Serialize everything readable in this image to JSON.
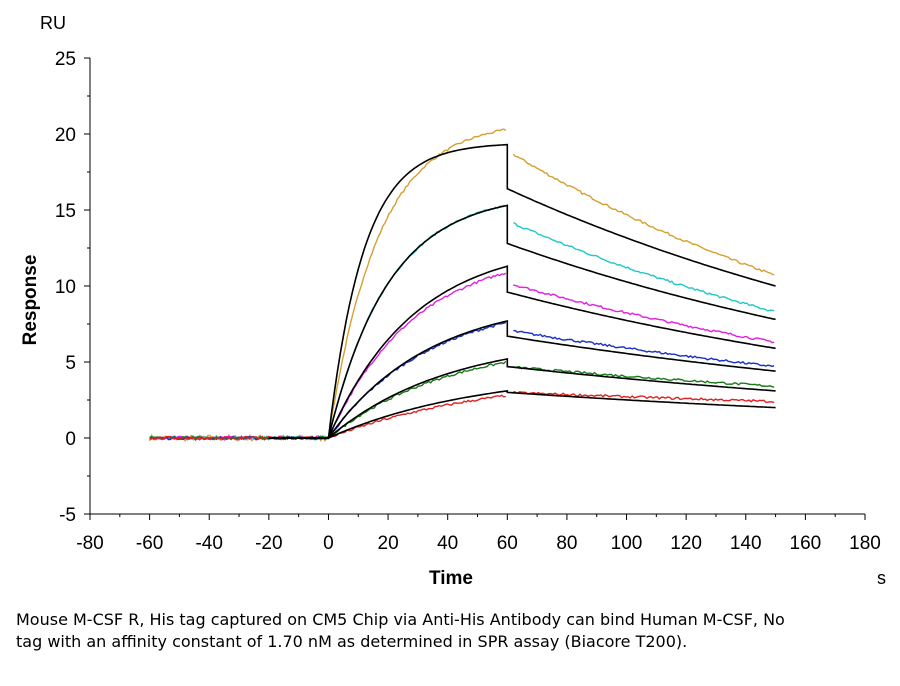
{
  "chart_data": {
    "type": "line",
    "ylabel": "Response",
    "xlabel": "Time",
    "y_unit": "RU",
    "x_unit": "s",
    "xlim": [
      -80,
      180
    ],
    "ylim": [
      -5,
      25
    ],
    "x_ticks": [
      -80,
      -60,
      -40,
      -20,
      0,
      20,
      40,
      60,
      80,
      100,
      120,
      140,
      160,
      180
    ],
    "y_ticks": [
      -5,
      0,
      5,
      10,
      15,
      20,
      25
    ],
    "grid": false,
    "legend": "none",
    "injection": {
      "start": 0,
      "end": 60,
      "end_time": 150,
      "baseline_start": -60
    },
    "series": [
      {
        "color": "#D4A030",
        "baseline_noise": 0.2,
        "association_end": 20.3,
        "assoc_rate": 0.06,
        "dissociation_end": 10.7,
        "dissociation_start": 18.9,
        "fit": {
          "association_end": 19.3,
          "assoc_rate": 0.085,
          "dissociation_start": 16.4,
          "dissociation_end": 10.0
        }
      },
      {
        "color": "#20C8C8",
        "baseline_noise": 0.12,
        "association_end": 15.3,
        "assoc_rate": 0.05,
        "dissociation_end": 8.3,
        "dissociation_start": 14.3,
        "fit": {
          "association_end": 15.3,
          "assoc_rate": 0.05,
          "dissociation_start": 12.8,
          "dissociation_end": 7.8
        }
      },
      {
        "color": "#E020E0",
        "baseline_noise": 0.12,
        "association_end": 10.9,
        "assoc_rate": 0.035,
        "dissociation_end": 6.3,
        "dissociation_start": 10.2,
        "fit": {
          "association_end": 11.3,
          "assoc_rate": 0.035,
          "dissociation_start": 9.6,
          "dissociation_end": 5.9
        }
      },
      {
        "color": "#1830C8",
        "baseline_noise": 0.1,
        "association_end": 7.6,
        "assoc_rate": 0.03,
        "dissociation_end": 4.7,
        "dissociation_start": 7.1,
        "fit": {
          "association_end": 7.7,
          "assoc_rate": 0.03,
          "dissociation_start": 6.7,
          "dissociation_end": 4.4
        }
      },
      {
        "color": "#1A7A1A",
        "baseline_noise": 0.1,
        "association_end": 5.0,
        "assoc_rate": 0.025,
        "dissociation_end": 3.4,
        "dissociation_start": 4.7,
        "fit": {
          "association_end": 5.2,
          "assoc_rate": 0.025,
          "dissociation_start": 4.7,
          "dissociation_end": 3.1
        }
      },
      {
        "color": "#E02020",
        "baseline_noise": 0.1,
        "association_end": 2.8,
        "assoc_rate": 0.018,
        "dissociation_end": 2.4,
        "dissociation_start": 3.0,
        "fit": {
          "association_end": 3.1,
          "assoc_rate": 0.02,
          "dissociation_start": 3.0,
          "dissociation_end": 2.0
        }
      }
    ],
    "fit_color": "#000000"
  },
  "caption": "Mouse M-CSF R, His tag captured on CM5 Chip via Anti-His Antibody can bind Human M-CSF, No tag with an affinity constant of 1.70 nM as determined in SPR assay (Biacore T200)."
}
